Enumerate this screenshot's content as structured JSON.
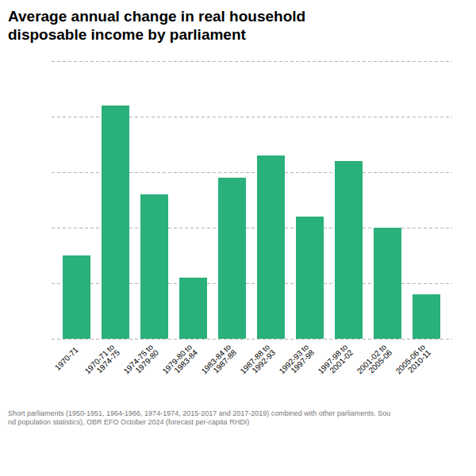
{
  "chart_data": {
    "type": "bar",
    "title": "Average annual change in real household\ndisposable income by parliament",
    "caption": "Short parliaments (1950-1951, 1964-1966, 1974-1974, 2015-2017 and 2017-2019) combined with other parliaments. Sou\nnd population statistics), OBR EFO October 2024 (forecast per-capita RHDI)",
    "categories": [
      "1970-71",
      "1970-71 to\n1974-75",
      "1974-75 to\n1979-80",
      "1979-80 to\n1983-84",
      "1983-84 to\n1987-88",
      "1987-88 to\n1992-93",
      "1992-93 to\n1997-98",
      "1997-98 to\n2001-02",
      "2001-02 to\n2005-06",
      "2005-06 to\n2010-11"
    ],
    "values": [
      1.5,
      4.2,
      2.6,
      1.1,
      2.9,
      3.3,
      2.2,
      3.2,
      2.0,
      0.8
    ],
    "color": "#2ab07a",
    "ylim": [
      0,
      5
    ],
    "yticks": [
      0,
      1,
      2,
      3,
      4,
      5
    ],
    "grid": true,
    "tick_labels": "x"
  }
}
